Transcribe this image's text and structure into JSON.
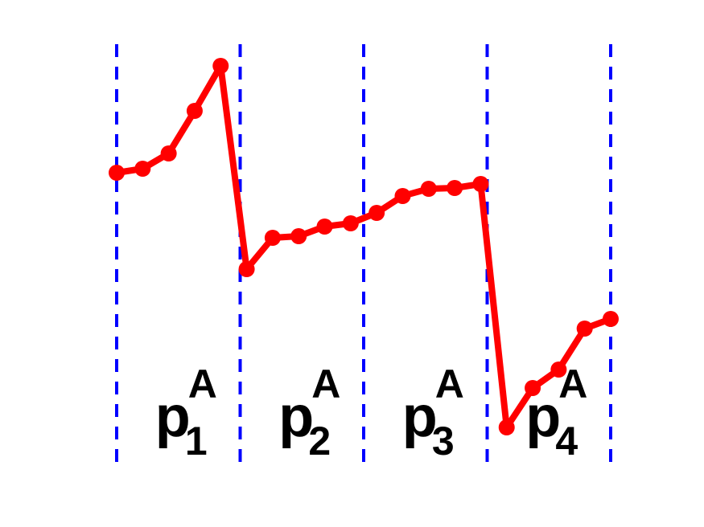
{
  "chart_data": {
    "type": "line",
    "x": [
      1,
      2,
      3,
      4,
      5,
      6,
      7,
      8,
      9,
      10,
      11,
      12,
      13,
      14,
      15,
      16,
      17,
      18,
      19,
      20
    ],
    "series": [
      {
        "color": "#ff0000",
        "values": [
          385,
          390,
          409,
          462,
          518,
          265,
          304,
          306,
          318,
          322,
          335,
          356,
          365,
          366,
          371,
          68,
          117,
          140,
          191,
          203
        ]
      }
    ],
    "xlim": [
      1,
      20
    ],
    "ylim": [
      0,
      600
    ],
    "vlines": [
      1,
      5.75,
      10.5,
      15.25,
      20
    ],
    "vline_color": "#0000ff",
    "annotations": [
      {
        "text": "p",
        "sub": "1",
        "sup": "A"
      },
      {
        "text": "p",
        "sub": "2",
        "sup": "A"
      },
      {
        "text": "p",
        "sub": "3",
        "sup": "A"
      },
      {
        "text": "p",
        "sub": "4",
        "sup": "A"
      }
    ]
  }
}
